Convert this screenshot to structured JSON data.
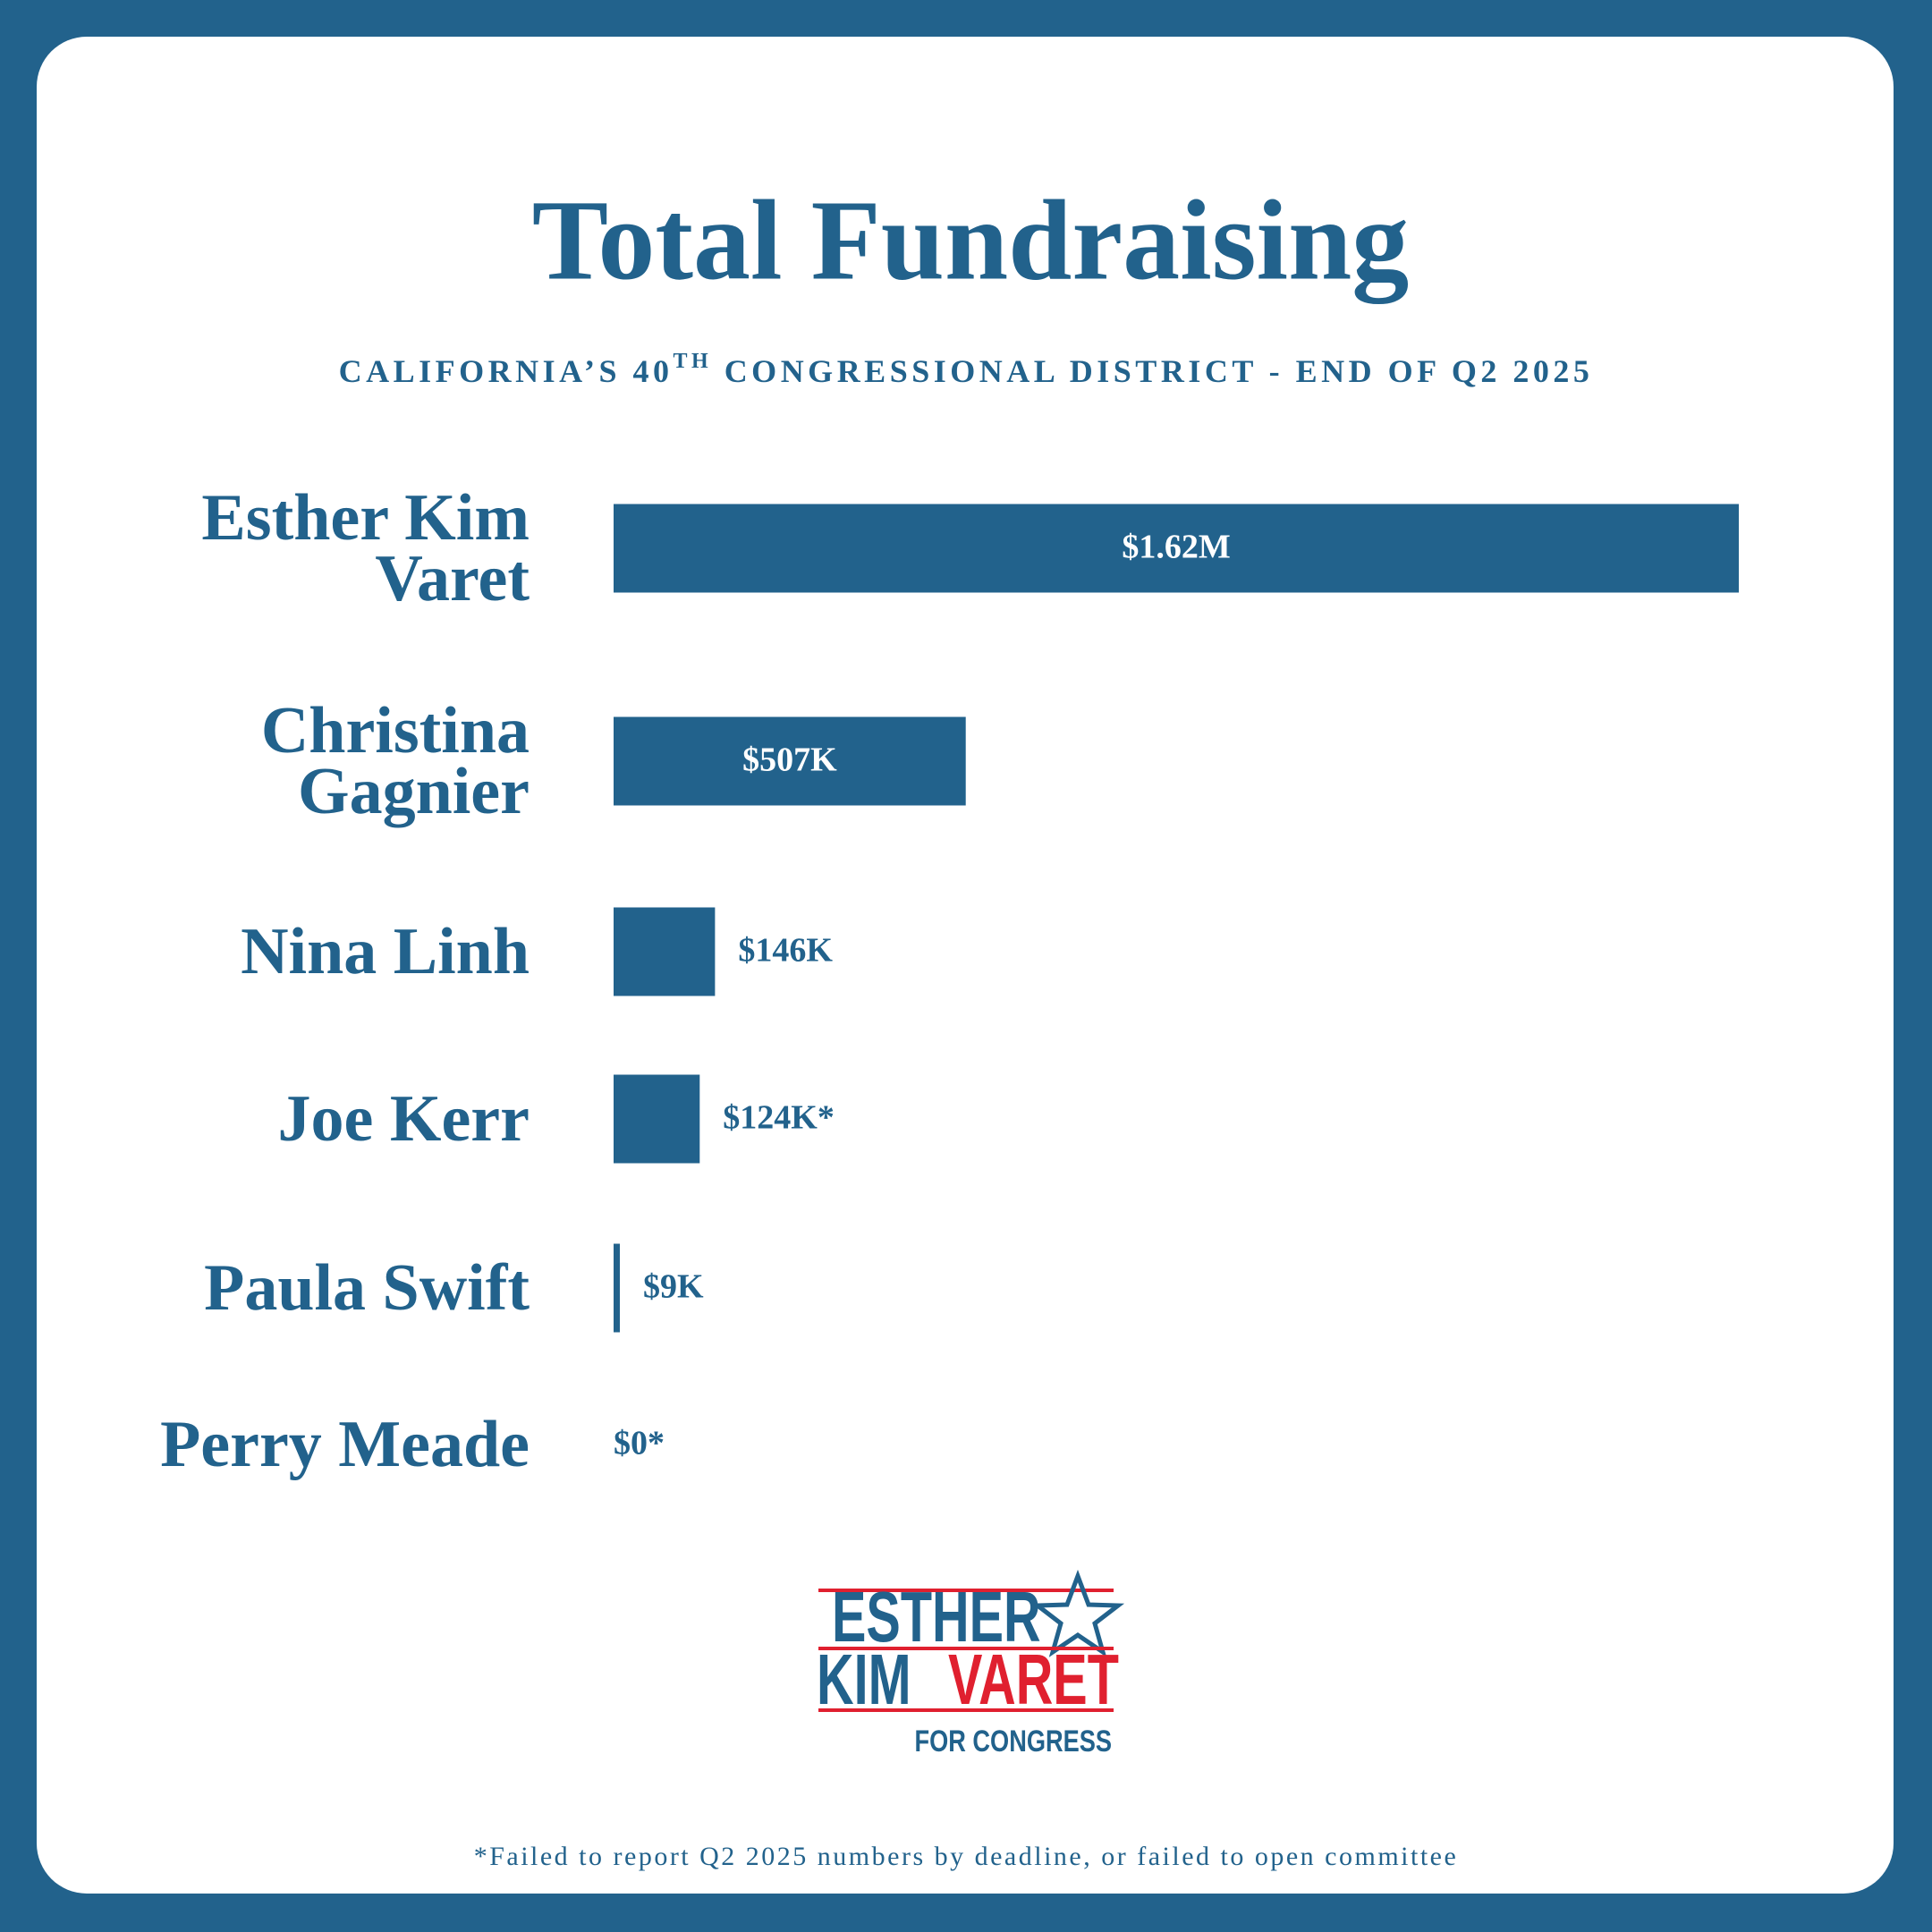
{
  "chart_data": {
    "type": "hbar",
    "title": "Total Fundraising",
    "subtitle": [
      "CALIFORNIA’S 40",
      "TH",
      "CONGRESSIONAL DISTRICT - END OF Q2 2025"
    ],
    "categories": [
      "Esther Kim Varet",
      "Christina Gagnier",
      "Nina Linh",
      "Joe Kerr",
      "Paula Swift",
      "Perry Meade"
    ],
    "values": [
      1620000,
      507000,
      146000,
      124000,
      9000,
      0
    ],
    "value_labels": [
      "$1.62M",
      "$507K",
      "$146K",
      "$124K*",
      "$9K",
      "$0*"
    ],
    "color": "#22628c",
    "footnote": "*Failed to report Q2 2025 numbers by deadline, or failed to open committee"
  },
  "logo": {
    "first": "ESTHER",
    "middle": "KIM",
    "last": "VARET",
    "tagline": "FOR CONGRESS"
  }
}
